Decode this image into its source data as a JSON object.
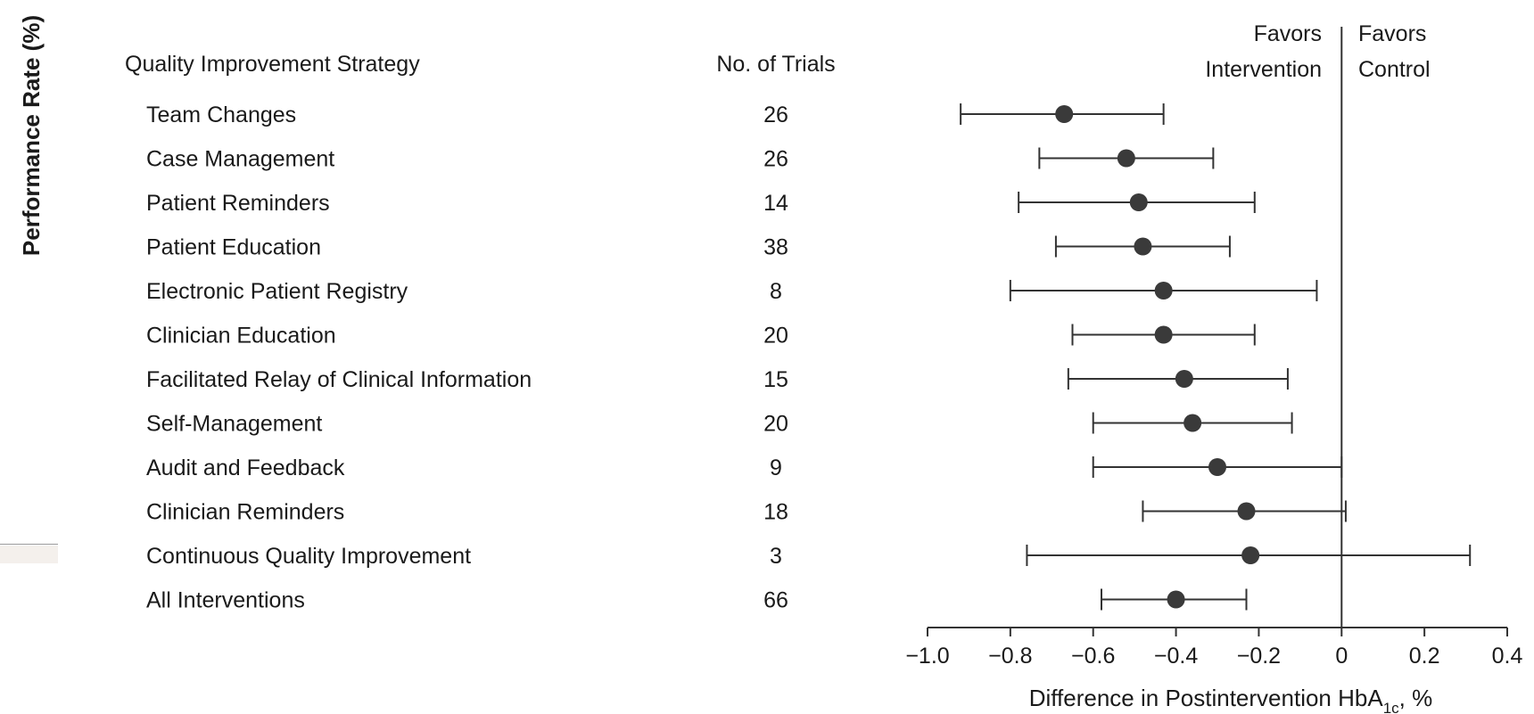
{
  "side_label": "Performance Rate (%)",
  "chart_data": {
    "type": "forest",
    "columns": {
      "strategy": "Quality Improvement Strategy",
      "trials": "No. of Trials"
    },
    "favors": {
      "left": [
        "Favors",
        "Intervention"
      ],
      "right": [
        "Favors",
        "Control"
      ]
    },
    "xlabel": {
      "main": "Difference in Postintervention HbA",
      "sub": "1c",
      "suffix": ", %"
    },
    "xlim": [
      -1.0,
      0.4
    ],
    "ticks": [
      -1.0,
      -0.8,
      -0.6,
      -0.4,
      -0.2,
      0,
      0.2,
      0.4
    ],
    "tick_labels": [
      "−1.0",
      "−0.8",
      "−0.6",
      "−0.4",
      "−0.2",
      "0",
      "0.2",
      "0.4"
    ],
    "reference_line": 0,
    "rows": [
      {
        "strategy": "Team Changes",
        "trials": "26",
        "estimate": -0.67,
        "lower": -0.92,
        "upper": -0.43
      },
      {
        "strategy": "Case Management",
        "trials": "26",
        "estimate": -0.52,
        "lower": -0.73,
        "upper": -0.31
      },
      {
        "strategy": "Patient Reminders",
        "trials": "14",
        "estimate": -0.49,
        "lower": -0.78,
        "upper": -0.21
      },
      {
        "strategy": "Patient Education",
        "trials": "38",
        "estimate": -0.48,
        "lower": -0.69,
        "upper": -0.27
      },
      {
        "strategy": "Electronic Patient Registry",
        "trials": "8",
        "estimate": -0.43,
        "lower": -0.8,
        "upper": -0.06
      },
      {
        "strategy": "Clinician Education",
        "trials": "20",
        "estimate": -0.43,
        "lower": -0.65,
        "upper": -0.21
      },
      {
        "strategy": "Facilitated Relay of Clinical Information",
        "trials": "15",
        "estimate": -0.38,
        "lower": -0.66,
        "upper": -0.13
      },
      {
        "strategy": "Self-Management",
        "trials": "20",
        "estimate": -0.36,
        "lower": -0.6,
        "upper": -0.12
      },
      {
        "strategy": "Audit and Feedback",
        "trials": "9",
        "estimate": -0.3,
        "lower": -0.6,
        "upper": 0.0
      },
      {
        "strategy": "Clinician Reminders",
        "trials": "18",
        "estimate": -0.23,
        "lower": -0.48,
        "upper": 0.01
      },
      {
        "strategy": "Continuous Quality Improvement",
        "trials": "3",
        "estimate": -0.22,
        "lower": -0.76,
        "upper": 0.31
      },
      {
        "strategy": "All Interventions",
        "trials": "66",
        "estimate": -0.4,
        "lower": -0.58,
        "upper": -0.23
      }
    ]
  }
}
